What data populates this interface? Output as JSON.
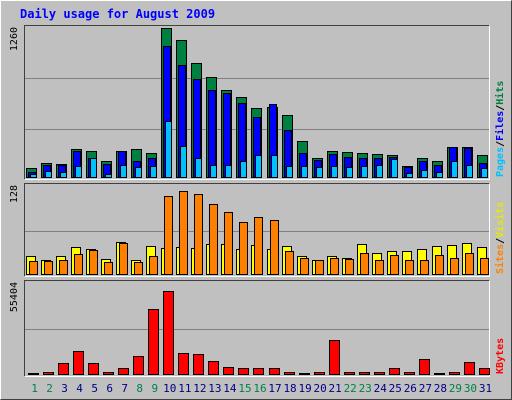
{
  "chart_data": {
    "type": "bar",
    "title": "Daily usage for August 2009",
    "categories": [
      "1",
      "2",
      "3",
      "4",
      "5",
      "6",
      "7",
      "8",
      "9",
      "10",
      "11",
      "12",
      "13",
      "14",
      "15",
      "16",
      "17",
      "18",
      "19",
      "20",
      "21",
      "22",
      "23",
      "24",
      "25",
      "26",
      "27",
      "28",
      "29",
      "30",
      "31"
    ],
    "weekend_days": [
      "1",
      "2",
      "8",
      "9",
      "15",
      "16",
      "22",
      "23",
      "29",
      "30"
    ],
    "panels": [
      {
        "name": "hits-files-pages",
        "ymax_label": "1260",
        "ylim": [
          0,
          1260
        ],
        "legend": [
          "Pages",
          "Files",
          "Hits"
        ],
        "series": [
          {
            "name": "Hits",
            "color": "#008040",
            "values": [
              80,
              130,
              120,
              240,
              230,
              140,
              230,
              240,
              210,
              1260,
              1160,
              970,
              850,
              740,
              680,
              590,
              600,
              530,
              310,
              170,
              230,
              220,
              210,
              200,
              190,
              100,
              170,
              140,
              260,
              260,
              190
            ]
          },
          {
            "name": "Files",
            "color": "#0000ff",
            "values": [
              50,
              110,
              110,
              230,
              170,
              120,
              230,
              140,
              170,
              1110,
              950,
              830,
              740,
              710,
              630,
              510,
              620,
              400,
              210,
              150,
              200,
              180,
              170,
              170,
              180,
              90,
              140,
              110,
              260,
              250,
              130
            ]
          },
          {
            "name": "Pages",
            "color": "#00c0ff",
            "values": [
              30,
              60,
              50,
              100,
              170,
              30,
              110,
              90,
              100,
              480,
              270,
              170,
              110,
              110,
              140,
              190,
              190,
              100,
              100,
              90,
              100,
              90,
              100,
              110,
              160,
              40,
              70,
              50,
              140,
              110,
              80
            ]
          }
        ]
      },
      {
        "name": "visits-sites",
        "ymax_label": "128",
        "ylim": [
          0,
          128
        ],
        "legend": [
          "Sites",
          "Visits"
        ],
        "series": [
          {
            "name": "Visits",
            "color": "#ffff00",
            "values": [
              28,
              21,
              27,
              40,
              38,
              23,
              47,
              22,
              41,
              39,
              40,
              39,
              45,
              44,
              37,
              43,
              38,
              41,
              28,
              22,
              28,
              25,
              44,
              32,
              34,
              35,
              38,
              42,
              43,
              46,
              40
            ]
          },
          {
            "name": "Sites",
            "color": "#ff8000",
            "values": [
              20,
              20,
              21,
              30,
              36,
              19,
              46,
              18,
              27,
              113,
              121,
              116,
              102,
              91,
              76,
              84,
              79,
              34,
              24,
              21,
              25,
              23,
              32,
              21,
              29,
              21,
              21,
              29,
              24,
              32,
              24
            ]
          }
        ]
      },
      {
        "name": "kbytes",
        "ymax_label": "55404",
        "ylim": [
          0,
          55404
        ],
        "legend": [
          "KBytes"
        ],
        "series": [
          {
            "name": "KBytes",
            "color": "#ff0000",
            "values": [
              1200,
              1600,
              7500,
              14500,
              7200,
              1600,
              4500,
              11500,
              40000,
              50500,
              13500,
              12600,
              8500,
              5000,
              4500,
              4500,
              4500,
              2000,
              1500,
              1800,
              21000,
              1700,
              1800,
              1700,
              4500,
              1800,
              9500,
              1500,
              1600,
              7800,
              4500
            ]
          }
        ]
      }
    ]
  },
  "colors": {
    "background": "#c0c0c0",
    "title": "#0000ff",
    "grid": "#808080",
    "weekday_label": "#000080",
    "weekend_label": "#00804a"
  }
}
